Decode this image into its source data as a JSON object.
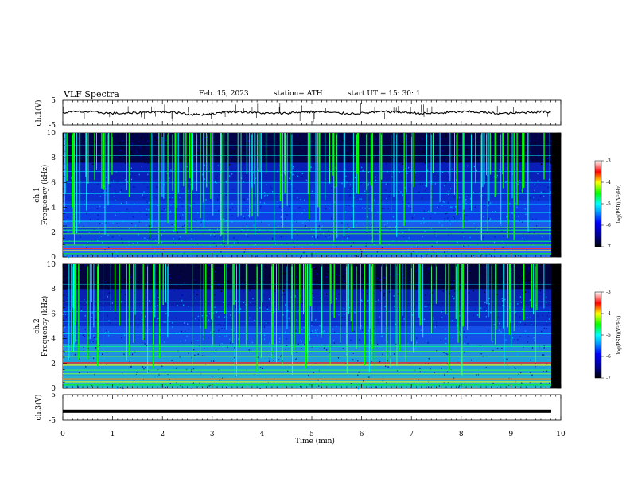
{
  "header": {
    "title": "VLF  Spectra",
    "date": "Feb. 15, 2023",
    "station": "station= ATH",
    "start": "start  UT  =    15: 30: 1"
  },
  "chart_data": {
    "type": "heatmap",
    "xlabel": "Time  (min)",
    "xlim": [
      0,
      10
    ],
    "xticks": [
      "0",
      "1",
      "2",
      "3",
      "4",
      "5",
      "6",
      "7",
      "8",
      "9",
      "10"
    ],
    "panels": [
      {
        "name": "ch1_waveform",
        "ylabel": "ch.1(V)",
        "ylim": [
          -5,
          5
        ],
        "yticks": [
          "5",
          "-5"
        ],
        "baseline_value": 0.0
      },
      {
        "name": "ch1_spectrogram",
        "ylabel_top": "ch.1",
        "ylabel": "Frequency  (kHz)",
        "ylim": [
          0,
          10
        ],
        "yticks": [
          "0",
          "2",
          "4",
          "6",
          "8",
          "10"
        ],
        "colorbar_label": "log(PSD)(V²/Hz)",
        "colorbar_ticks": [
          "-3",
          "-4",
          "-5",
          "-6",
          "-7"
        ],
        "colorbar_range": [
          -7,
          -3
        ]
      },
      {
        "name": "ch2_spectrogram",
        "ylabel_top": "ch.2",
        "ylabel": "Frequency  (kHz)",
        "ylim": [
          0,
          10
        ],
        "yticks": [
          "0",
          "2",
          "4",
          "6",
          "8",
          "10"
        ],
        "colorbar_label": "log(PSD)(V²/Hz)",
        "colorbar_ticks": [
          "-3",
          "-4",
          "-5",
          "-6",
          "-7"
        ],
        "colorbar_range": [
          -7,
          -3
        ]
      },
      {
        "name": "ch3_waveform",
        "ylabel": "ch.3(V)",
        "ylim": [
          -5,
          5
        ],
        "yticks": [
          "5",
          "-5"
        ],
        "baseline_value": -1.5
      }
    ],
    "colormap": [
      "#000000",
      "#00008b",
      "#0000ff",
      "#00b0ff",
      "#00ffff",
      "#00ff00",
      "#ffff00",
      "#ff0000",
      "#ffffff"
    ]
  }
}
